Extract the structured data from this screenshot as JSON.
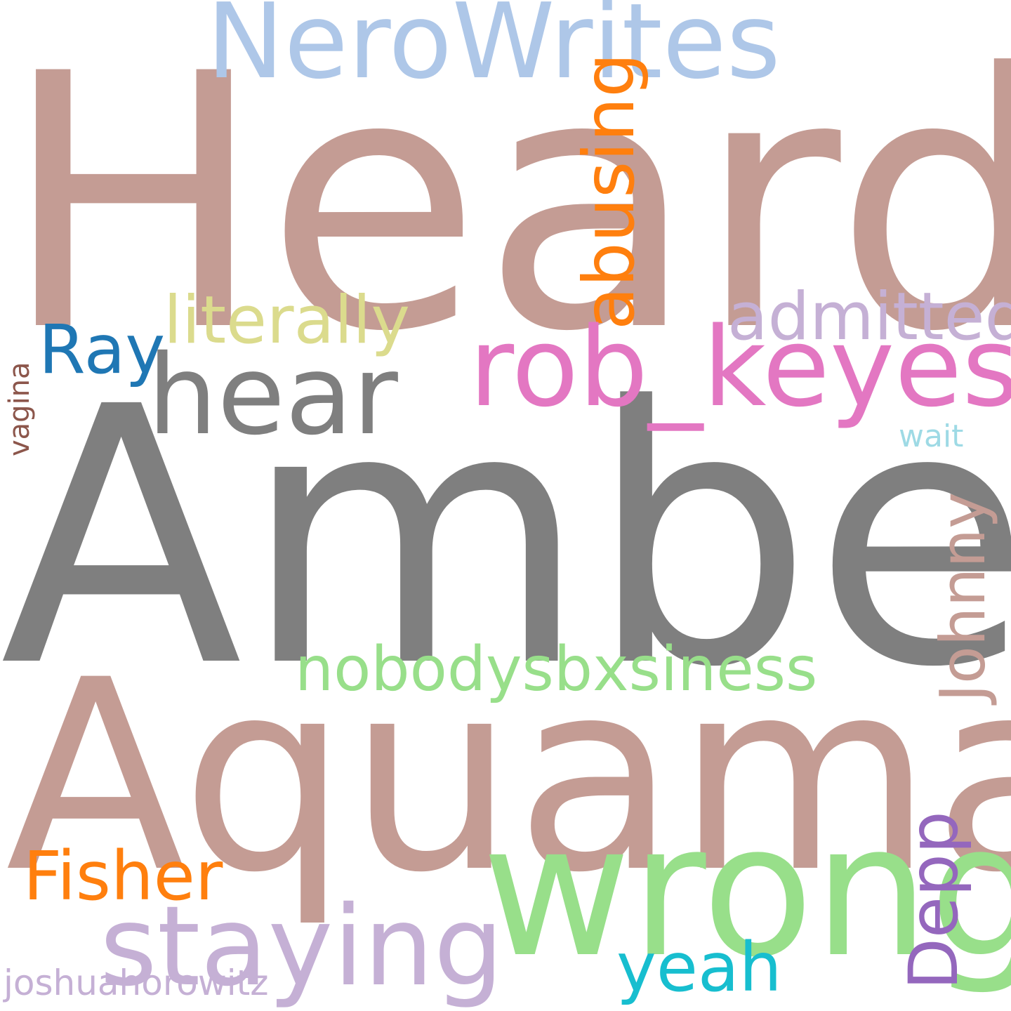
{
  "words": {
    "heard": {
      "text": "Heard",
      "color": "#c49c94"
    },
    "amber": {
      "text": "Amber",
      "color": "#7f7f7f"
    },
    "aquaman": {
      "text": "Aquaman",
      "color": "#c49c94"
    },
    "nerowrites": {
      "text": "NeroWrites",
      "color": "#aec7e8"
    },
    "abusing": {
      "text": "abusing",
      "color": "#ff7f0e"
    },
    "literally": {
      "text": "literally",
      "color": "#dbdb8d"
    },
    "admitted": {
      "text": "admitted",
      "color": "#c5b0d5"
    },
    "rob_keyes": {
      "text": "rob_keyes",
      "color": "#e377c2"
    },
    "ray": {
      "text": "Ray",
      "color": "#1f77b4"
    },
    "hear": {
      "text": "hear",
      "color": "#7f7f7f"
    },
    "vagina": {
      "text": "vagina",
      "color": "#8c564b"
    },
    "wait": {
      "text": "wait",
      "color": "#9edae5"
    },
    "johnny": {
      "text": "Johnny",
      "color": "#c49c94"
    },
    "nobodysbxsiness": {
      "text": "nobodysbxsiness",
      "color": "#98df8a"
    },
    "wrong": {
      "text": "wrong",
      "color": "#98df8a"
    },
    "fisher": {
      "text": "Fisher",
      "color": "#ff7f0e"
    },
    "depp": {
      "text": "Depp",
      "color": "#9467bd"
    },
    "staying": {
      "text": "staying",
      "color": "#c5b0d5"
    },
    "yeah": {
      "text": "yeah",
      "color": "#17becf"
    },
    "joshuahorowitz": {
      "text": "joshuahorowitz",
      "color": "#c5b0d5"
    }
  }
}
